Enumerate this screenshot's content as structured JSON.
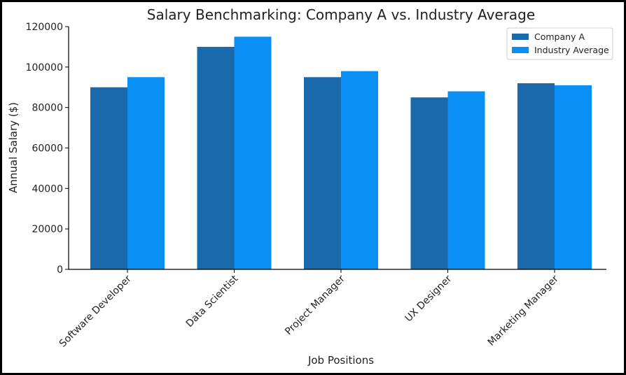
{
  "chart_data": {
    "type": "bar",
    "title": "Salary Benchmarking: Company A vs. Industry Average",
    "xlabel": "Job Positions",
    "ylabel": "Annual Salary ($)",
    "categories": [
      "Software Developer",
      "Data Scientist",
      "Project Manager",
      "UX Designer",
      "Marketing Manager"
    ],
    "series": [
      {
        "name": "Company A",
        "color": "#1a6aab",
        "values": [
          90000,
          110000,
          95000,
          85000,
          92000
        ]
      },
      {
        "name": "Industry Average",
        "color": "#0a8ff5",
        "values": [
          95000,
          115000,
          98000,
          88000,
          91000
        ]
      }
    ],
    "ylim": [
      0,
      120000
    ],
    "yticks": [
      "0",
      "20000",
      "40000",
      "60000",
      "80000",
      "100000",
      "120000"
    ],
    "grid": false,
    "legend_position": "top-right"
  }
}
